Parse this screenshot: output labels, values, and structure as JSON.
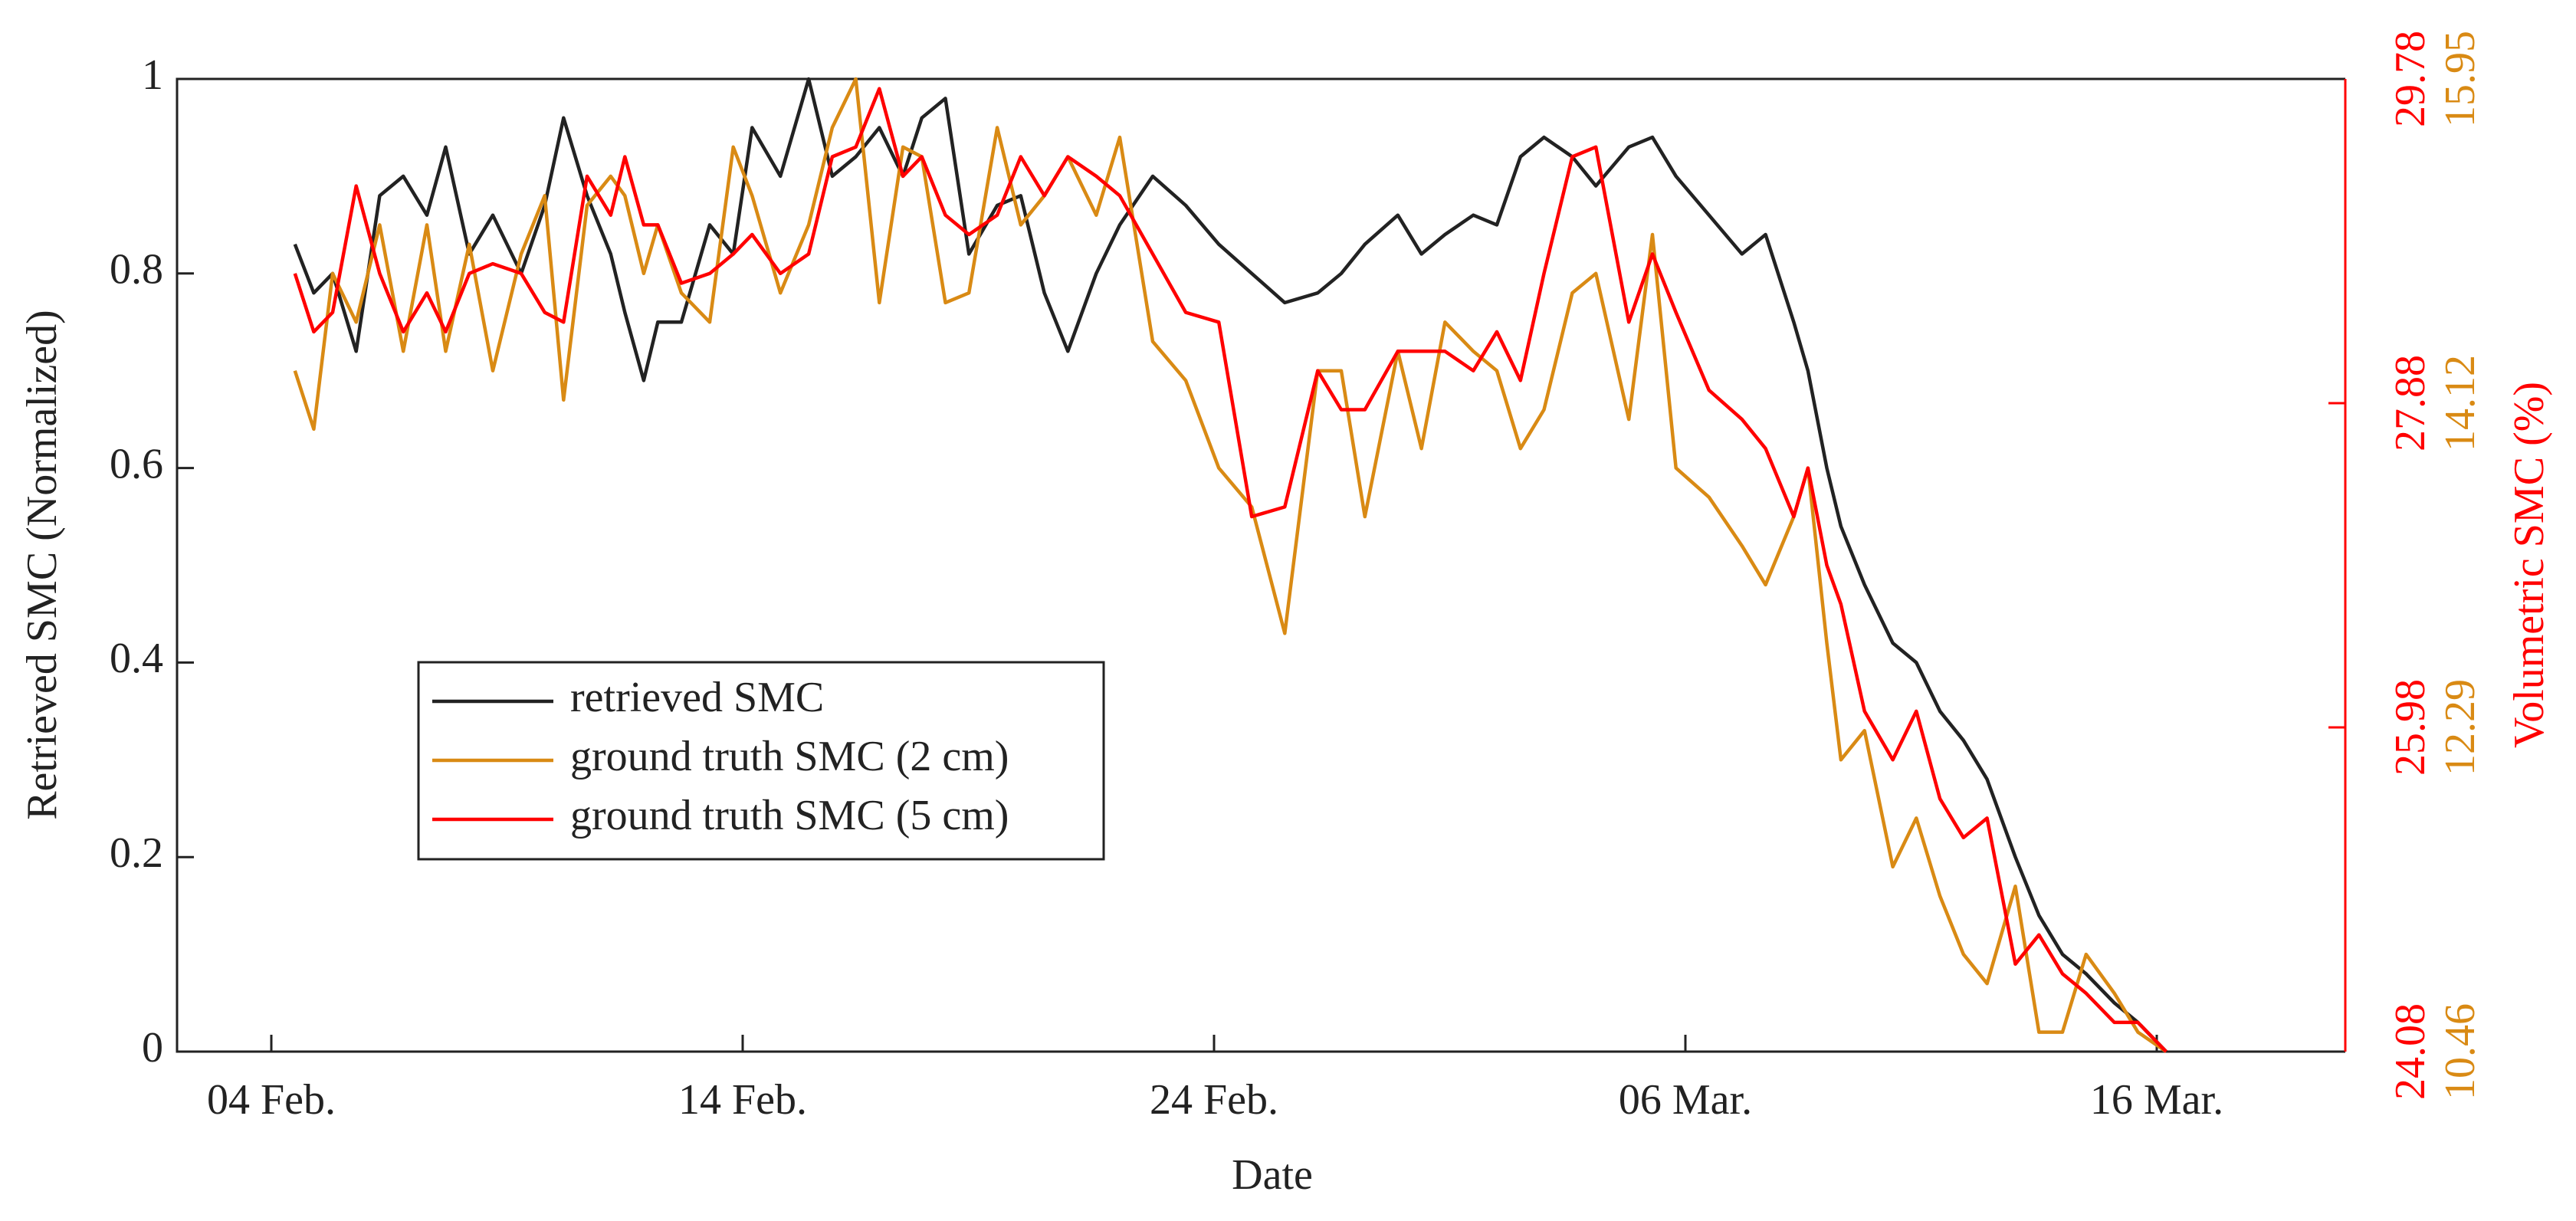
{
  "chart_data": {
    "type": "line",
    "xlabel": "Date",
    "ylabel": "Retrieved SMC (Normalized)",
    "y2label": "Volumetric SMC (%)",
    "xlim": [
      -2,
      44
    ],
    "xticks": [
      {
        "value": 0,
        "label": "04 Feb."
      },
      {
        "value": 10,
        "label": "14 Feb."
      },
      {
        "value": 20,
        "label": "24 Feb."
      },
      {
        "value": 30,
        "label": "06 Mar."
      },
      {
        "value": 40,
        "label": "16 Mar."
      }
    ],
    "ylim": [
      0,
      1
    ],
    "yticks": [
      0,
      0.2,
      0.4,
      0.6,
      0.8,
      1
    ],
    "y2lim": [
      24.08,
      29.78
    ],
    "y2ticks": [
      24.08,
      25.98,
      27.88,
      29.78
    ],
    "y2color": "#ff0000",
    "y3lim": [
      10.46,
      15.95
    ],
    "y3ticks": [
      10.46,
      12.29,
      14.12,
      15.95
    ],
    "y3color": "#d98a14",
    "legend": "lower left",
    "x": [
      0.5,
      0.9,
      1.3,
      1.8,
      2.3,
      2.8,
      3.3,
      3.7,
      4.2,
      4.7,
      5.3,
      5.8,
      6.2,
      6.7,
      7.2,
      7.5,
      7.9,
      8.2,
      8.7,
      9.3,
      9.8,
      10.2,
      10.8,
      11.4,
      11.9,
      12.4,
      12.9,
      13.4,
      13.8,
      14.3,
      14.8,
      15.4,
      15.9,
      16.4,
      16.9,
      17.5,
      18.0,
      18.7,
      19.4,
      20.1,
      20.8,
      21.5,
      22.2,
      22.7,
      23.2,
      23.9,
      24.4,
      24.9,
      25.5,
      26.0,
      26.5,
      27.0,
      27.6,
      28.1,
      28.8,
      29.3,
      29.8,
      30.5,
      31.2,
      31.7,
      32.3,
      32.6,
      33.0,
      33.3,
      33.8,
      34.4,
      34.9,
      35.4,
      35.9,
      36.4,
      37.0,
      37.5,
      38.0,
      38.5,
      39.1,
      39.6,
      40.2
    ],
    "series": [
      {
        "name": "retrieved SMC",
        "color": "#222222",
        "values": [
          0.83,
          0.78,
          0.8,
          0.72,
          0.88,
          0.9,
          0.86,
          0.93,
          0.82,
          0.86,
          0.8,
          0.87,
          0.96,
          0.88,
          0.82,
          0.76,
          0.69,
          0.75,
          0.75,
          0.85,
          0.82,
          0.95,
          0.9,
          1.0,
          0.9,
          0.92,
          0.95,
          0.9,
          0.96,
          0.98,
          0.82,
          0.87,
          0.88,
          0.78,
          0.72,
          0.8,
          0.85,
          0.9,
          0.87,
          0.83,
          0.8,
          0.77,
          0.78,
          0.8,
          0.83,
          0.86,
          0.82,
          0.84,
          0.86,
          0.85,
          0.92,
          0.94,
          0.92,
          0.89,
          0.93,
          0.94,
          0.9,
          0.86,
          0.82,
          0.84,
          0.75,
          0.7,
          0.6,
          0.54,
          0.48,
          0.42,
          0.4,
          0.35,
          0.32,
          0.28,
          0.2,
          0.14,
          0.1,
          0.08,
          0.05,
          0.03,
          0.0
        ]
      },
      {
        "name": "ground truth SMC (2 cm)",
        "color": "#d98a14",
        "values": [
          0.7,
          0.64,
          0.8,
          0.75,
          0.85,
          0.72,
          0.85,
          0.72,
          0.83,
          0.7,
          0.82,
          0.88,
          0.67,
          0.87,
          0.9,
          0.88,
          0.8,
          0.85,
          0.78,
          0.75,
          0.93,
          0.88,
          0.78,
          0.85,
          0.95,
          1.0,
          0.77,
          0.93,
          0.92,
          0.77,
          0.78,
          0.95,
          0.85,
          0.88,
          0.92,
          0.86,
          0.94,
          0.73,
          0.69,
          0.6,
          0.56,
          0.43,
          0.7,
          0.7,
          0.55,
          0.72,
          0.62,
          0.75,
          0.72,
          0.7,
          0.62,
          0.66,
          0.78,
          0.8,
          0.65,
          0.84,
          0.6,
          0.57,
          0.52,
          0.48,
          0.55,
          0.6,
          0.42,
          0.3,
          0.33,
          0.19,
          0.24,
          0.16,
          0.1,
          0.07,
          0.17,
          0.02,
          0.02,
          0.1,
          0.06,
          0.02,
          0.0
        ]
      },
      {
        "name": "ground truth SMC (5 cm)",
        "color": "#ff0000",
        "values": [
          0.8,
          0.74,
          0.76,
          0.89,
          0.8,
          0.74,
          0.78,
          0.74,
          0.8,
          0.81,
          0.8,
          0.76,
          0.75,
          0.9,
          0.86,
          0.92,
          0.85,
          0.85,
          0.79,
          0.8,
          0.82,
          0.84,
          0.8,
          0.82,
          0.92,
          0.93,
          0.99,
          0.9,
          0.92,
          0.86,
          0.84,
          0.86,
          0.92,
          0.88,
          0.92,
          0.9,
          0.88,
          0.82,
          0.76,
          0.75,
          0.55,
          0.56,
          0.7,
          0.66,
          0.66,
          0.72,
          0.72,
          0.72,
          0.7,
          0.74,
          0.69,
          0.8,
          0.92,
          0.93,
          0.75,
          0.82,
          0.76,
          0.68,
          0.65,
          0.62,
          0.55,
          0.6,
          0.5,
          0.46,
          0.35,
          0.3,
          0.35,
          0.26,
          0.22,
          0.24,
          0.09,
          0.12,
          0.08,
          0.06,
          0.03,
          0.03,
          0.0
        ]
      }
    ]
  }
}
